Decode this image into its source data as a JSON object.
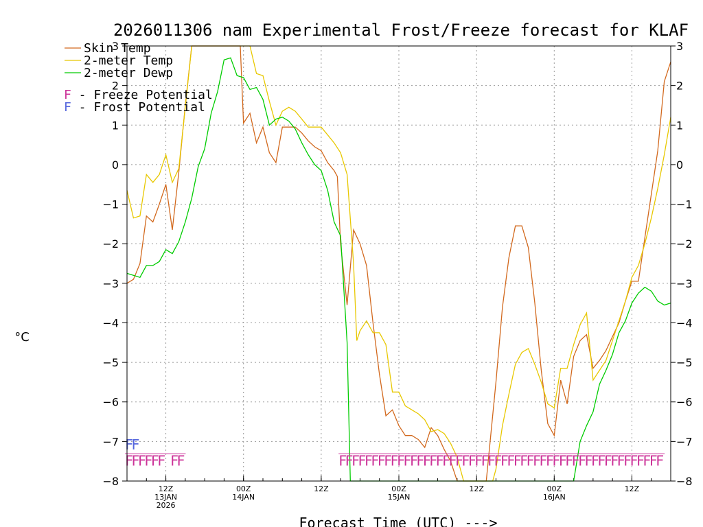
{
  "chart_data": {
    "type": "line",
    "title": "2026011306 nam Experimental Frost/Freeze forecast for KLAF",
    "ylabel": "°C",
    "xlabel": "Forecast Time (UTC) --->",
    "ylim": [
      -8,
      3
    ],
    "yticks": [
      3,
      2,
      1,
      0,
      -1,
      -2,
      -3,
      -4,
      -5,
      -6,
      -7,
      -8
    ],
    "xlim": [
      6,
      90
    ],
    "x_unit": "hours after 2026-01-13 00Z",
    "xticks": [
      {
        "x": 12,
        "lines": [
          "12Z",
          "13JAN",
          "2026"
        ]
      },
      {
        "x": 24,
        "lines": [
          "00Z",
          "14JAN"
        ]
      },
      {
        "x": 36,
        "lines": [
          "12Z"
        ]
      },
      {
        "x": 48,
        "lines": [
          "00Z",
          "15JAN"
        ]
      },
      {
        "x": 60,
        "lines": [
          "12Z"
        ]
      },
      {
        "x": 72,
        "lines": [
          "00Z",
          "16JAN"
        ]
      },
      {
        "x": 84,
        "lines": [
          "12Z"
        ]
      }
    ],
    "grid": true,
    "legend_position": "top-left",
    "series": [
      {
        "name": "Skin Temp",
        "color": "#d2691e",
        "points": [
          [
            6,
            -3.0
          ],
          [
            7,
            -2.9
          ],
          [
            8,
            -2.5
          ],
          [
            9,
            -1.3
          ],
          [
            10,
            -1.45
          ],
          [
            11,
            -1.0
          ],
          [
            12,
            -0.5
          ],
          [
            13,
            -1.65
          ],
          [
            14,
            -0.2
          ],
          [
            15,
            1.5
          ],
          [
            16,
            3.0
          ],
          [
            23.5,
            3.0
          ],
          [
            24,
            1.05
          ],
          [
            25,
            1.3
          ],
          [
            26,
            0.55
          ],
          [
            27,
            0.95
          ],
          [
            28,
            0.3
          ],
          [
            29,
            0.05
          ],
          [
            30,
            0.95
          ],
          [
            31,
            0.95
          ],
          [
            32,
            0.95
          ],
          [
            33,
            0.8
          ],
          [
            34,
            0.6
          ],
          [
            35,
            0.45
          ],
          [
            36,
            0.35
          ],
          [
            37,
            0.05
          ],
          [
            38,
            -0.15
          ],
          [
            38.5,
            -0.3
          ],
          [
            39,
            -2.0
          ],
          [
            40,
            -3.55
          ],
          [
            41,
            -1.65
          ],
          [
            42,
            -2.0
          ],
          [
            43,
            -2.55
          ],
          [
            44,
            -4.0
          ],
          [
            45,
            -5.3
          ],
          [
            46,
            -6.35
          ],
          [
            47,
            -6.2
          ],
          [
            48,
            -6.6
          ],
          [
            49,
            -6.85
          ],
          [
            50,
            -6.85
          ],
          [
            51,
            -6.95
          ],
          [
            52,
            -7.15
          ],
          [
            53,
            -6.65
          ],
          [
            54,
            -6.85
          ],
          [
            55,
            -7.2
          ],
          [
            56,
            -7.5
          ],
          [
            57,
            -8.0
          ],
          [
            61.5,
            -8.0
          ],
          [
            63,
            -5.5
          ],
          [
            64,
            -3.6
          ],
          [
            65,
            -2.35
          ],
          [
            66,
            -1.55
          ],
          [
            67,
            -1.55
          ],
          [
            68,
            -2.1
          ],
          [
            69,
            -3.5
          ],
          [
            70,
            -5.2
          ],
          [
            71,
            -6.55
          ],
          [
            72,
            -6.85
          ],
          [
            73,
            -5.45
          ],
          [
            74,
            -6.05
          ],
          [
            75,
            -4.85
          ],
          [
            76,
            -4.45
          ],
          [
            77,
            -4.3
          ],
          [
            78,
            -5.15
          ],
          [
            79,
            -4.95
          ],
          [
            80,
            -4.7
          ],
          [
            81,
            -4.35
          ],
          [
            82,
            -4.0
          ],
          [
            83,
            -3.45
          ],
          [
            84,
            -2.95
          ],
          [
            85,
            -2.95
          ],
          [
            86,
            -1.85
          ],
          [
            87,
            -0.75
          ],
          [
            88,
            0.35
          ],
          [
            89,
            2.1
          ],
          [
            90,
            2.6
          ]
        ]
      },
      {
        "name": "2-meter Temp",
        "color": "#e8c800",
        "points": [
          [
            6,
            -0.65
          ],
          [
            7,
            -1.35
          ],
          [
            8,
            -1.3
          ],
          [
            9,
            -0.25
          ],
          [
            10,
            -0.45
          ],
          [
            11,
            -0.25
          ],
          [
            12,
            0.25
          ],
          [
            13,
            -0.45
          ],
          [
            14,
            -0.1
          ],
          [
            15,
            1.45
          ],
          [
            16,
            3.0
          ],
          [
            23.5,
            3.0
          ],
          [
            25,
            3.0
          ],
          [
            26,
            2.3
          ],
          [
            27,
            2.25
          ],
          [
            28,
            1.6
          ],
          [
            29,
            1.0
          ],
          [
            30,
            1.35
          ],
          [
            31,
            1.45
          ],
          [
            32,
            1.35
          ],
          [
            33,
            1.15
          ],
          [
            34,
            0.95
          ],
          [
            35,
            0.95
          ],
          [
            36,
            0.95
          ],
          [
            37,
            0.75
          ],
          [
            38,
            0.55
          ],
          [
            39,
            0.3
          ],
          [
            40,
            -0.25
          ],
          [
            41,
            -2.5
          ],
          [
            41.5,
            -4.45
          ],
          [
            42,
            -4.2
          ],
          [
            43,
            -3.95
          ],
          [
            44,
            -4.25
          ],
          [
            45,
            -4.25
          ],
          [
            46,
            -4.55
          ],
          [
            47,
            -5.75
          ],
          [
            48,
            -5.75
          ],
          [
            49,
            -6.1
          ],
          [
            50,
            -6.2
          ],
          [
            51,
            -6.3
          ],
          [
            52,
            -6.45
          ],
          [
            53,
            -6.75
          ],
          [
            54,
            -6.7
          ],
          [
            55,
            -6.8
          ],
          [
            56,
            -7.05
          ],
          [
            57,
            -7.4
          ],
          [
            58,
            -8.0
          ],
          [
            62.5,
            -8.0
          ],
          [
            63,
            -7.7
          ],
          [
            64,
            -6.6
          ],
          [
            65,
            -5.8
          ],
          [
            66,
            -5.05
          ],
          [
            67,
            -4.75
          ],
          [
            68,
            -4.65
          ],
          [
            69,
            -5.05
          ],
          [
            70,
            -5.5
          ],
          [
            71,
            -6.05
          ],
          [
            72,
            -6.15
          ],
          [
            73,
            -5.15
          ],
          [
            74,
            -5.15
          ],
          [
            75,
            -4.55
          ],
          [
            76,
            -4.05
          ],
          [
            77,
            -3.75
          ],
          [
            78,
            -5.45
          ],
          [
            79,
            -5.2
          ],
          [
            80,
            -4.95
          ],
          [
            81,
            -4.45
          ],
          [
            82,
            -3.95
          ],
          [
            83,
            -3.45
          ],
          [
            84,
            -2.85
          ],
          [
            85,
            -2.55
          ],
          [
            86,
            -2.0
          ],
          [
            87,
            -1.35
          ],
          [
            88,
            -0.6
          ],
          [
            89,
            0.25
          ],
          [
            90,
            1.2
          ]
        ]
      },
      {
        "name": "2-meter Dewp",
        "color": "#00cc00",
        "points": [
          [
            6,
            -2.75
          ],
          [
            7,
            -2.8
          ],
          [
            8,
            -2.85
          ],
          [
            9,
            -2.55
          ],
          [
            10,
            -2.55
          ],
          [
            11,
            -2.45
          ],
          [
            12,
            -2.15
          ],
          [
            13,
            -2.25
          ],
          [
            14,
            -1.95
          ],
          [
            15,
            -1.45
          ],
          [
            16,
            -0.85
          ],
          [
            17,
            -0.05
          ],
          [
            18,
            0.4
          ],
          [
            19,
            1.3
          ],
          [
            20,
            1.85
          ],
          [
            21,
            2.65
          ],
          [
            22,
            2.7
          ],
          [
            23,
            2.25
          ],
          [
            24,
            2.2
          ],
          [
            25,
            1.9
          ],
          [
            26,
            1.95
          ],
          [
            27,
            1.65
          ],
          [
            28,
            1.0
          ],
          [
            29,
            1.15
          ],
          [
            30,
            1.2
          ],
          [
            31,
            1.1
          ],
          [
            32,
            0.9
          ],
          [
            33,
            0.55
          ],
          [
            34,
            0.25
          ],
          [
            35,
            0.0
          ],
          [
            36,
            -0.15
          ],
          [
            37,
            -0.65
          ],
          [
            38,
            -1.45
          ],
          [
            39,
            -1.8
          ],
          [
            40,
            -4.5
          ],
          [
            40.5,
            -8.0
          ],
          [
            75,
            -8.0
          ],
          [
            76,
            -7.0
          ],
          [
            77,
            -6.6
          ],
          [
            78,
            -6.25
          ],
          [
            79,
            -5.55
          ],
          [
            80,
            -5.2
          ],
          [
            81,
            -4.8
          ],
          [
            82,
            -4.25
          ],
          [
            83,
            -3.95
          ],
          [
            84,
            -3.5
          ],
          [
            85,
            -3.25
          ],
          [
            86,
            -3.1
          ],
          [
            87,
            -3.2
          ],
          [
            88,
            -3.45
          ],
          [
            89,
            -3.55
          ],
          [
            90,
            -3.5
          ]
        ]
      }
    ],
    "markers": [
      {
        "name": "Freeze Potential",
        "color": "#cc3399",
        "letter": "F",
        "y": -7.45,
        "x": [
          6,
          7,
          8,
          9,
          10,
          11,
          13,
          14
        ]
      },
      {
        "name": "Frost Potential",
        "color": "#5566dd",
        "letter": "F",
        "y": -7.05,
        "x": [
          6,
          7
        ]
      },
      {
        "name": "Freeze Potential",
        "color": "#cc3399",
        "letter": "F",
        "y": -7.45,
        "x": [
          39,
          40,
          41,
          42,
          43,
          44,
          45,
          46,
          47,
          48,
          49,
          50,
          51,
          52,
          53,
          54,
          55,
          56,
          57,
          58,
          59,
          60,
          61,
          62,
          63,
          64,
          65,
          66,
          67,
          68,
          69,
          70,
          71,
          72,
          73,
          74,
          75,
          76,
          77,
          78,
          79,
          80,
          81,
          82,
          83,
          84,
          85,
          86,
          87,
          88
        ]
      }
    ],
    "legend": [
      {
        "label": "Skin Temp",
        "color": "#d2691e",
        "kind": "line"
      },
      {
        "label": "2-meter Temp",
        "color": "#e8c800",
        "kind": "line"
      },
      {
        "label": "2-meter Dewp",
        "color": "#00cc00",
        "kind": "line"
      },
      {
        "label": "F - Freeze Potential",
        "color": "#cc3399",
        "kind": "text"
      },
      {
        "label": "F - Frost Potential",
        "color": "#5566dd",
        "kind": "text"
      }
    ]
  }
}
